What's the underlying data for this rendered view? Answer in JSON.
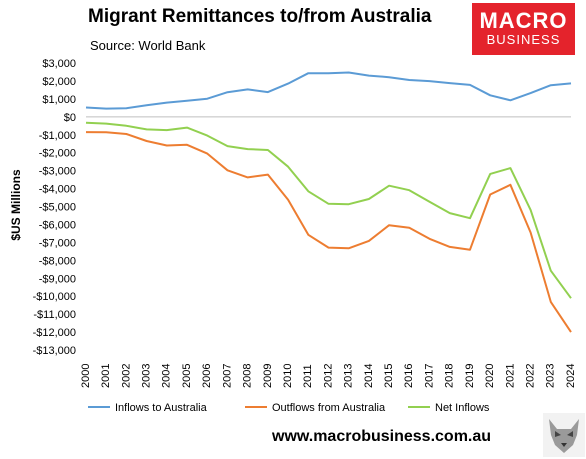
{
  "header": {
    "title": "Migrant Remittances to/from Australia",
    "source": "Source: World Bank"
  },
  "logo": {
    "line1": "MACRO",
    "line2": "BUSINESS",
    "color": "#e4232c"
  },
  "footer": {
    "url": "www.macrobusiness.com.au"
  },
  "chart_data": {
    "type": "line",
    "title": "Migrant Remittances to/from Australia",
    "ylabel": "$US Millions",
    "xlabel": "",
    "ylim": [
      -13000,
      3000
    ],
    "yticks": [
      3000,
      2000,
      1000,
      0,
      -1000,
      -2000,
      -3000,
      -4000,
      -5000,
      -6000,
      -7000,
      -8000,
      -9000,
      -10000,
      -11000,
      -12000,
      -13000
    ],
    "ytick_labels": [
      "$3,000",
      "$2,000",
      "$1,000",
      "$0",
      "-$1,000",
      "-$2,000",
      "-$3,000",
      "-$4,000",
      "-$5,000",
      "-$6,000",
      "-$7,000",
      "-$8,000",
      "-$9,000",
      "-$10,000",
      "-$11,000",
      "-$12,000",
      "-$13,000"
    ],
    "categories": [
      "2000",
      "2001",
      "2002",
      "2003",
      "2004",
      "2005",
      "2006",
      "2007",
      "2008",
      "2009",
      "2010",
      "2011",
      "2012",
      "2013",
      "2014",
      "2015",
      "2016",
      "2017",
      "2018",
      "2019",
      "2020",
      "2021",
      "2022",
      "2023",
      "2024"
    ],
    "grid": false,
    "legend": "bottom",
    "series": [
      {
        "name": "Inflows to Australia",
        "color": "#5b9bd5",
        "values": [
          520,
          460,
          480,
          640,
          790,
          900,
          1010,
          1370,
          1530,
          1380,
          1850,
          2430,
          2430,
          2470,
          2300,
          2210,
          2050,
          1990,
          1880,
          1780,
          1200,
          920,
          1320,
          1760,
          1860
        ]
      },
      {
        "name": "Outflows from Australia",
        "color": "#ed7d31",
        "values": [
          -850,
          -860,
          -960,
          -1350,
          -1600,
          -1560,
          -2050,
          -2980,
          -3380,
          -3220,
          -4620,
          -6580,
          -7290,
          -7330,
          -6920,
          -6040,
          -6190,
          -6800,
          -7250,
          -7410,
          -4330,
          -3790,
          -6450,
          -10320,
          -12000
        ]
      },
      {
        "name": "Net Inflows",
        "color": "#92d050",
        "values": [
          -330,
          -380,
          -500,
          -700,
          -740,
          -600,
          -1050,
          -1630,
          -1800,
          -1850,
          -2780,
          -4150,
          -4850,
          -4870,
          -4580,
          -3840,
          -4090,
          -4730,
          -5370,
          -5650,
          -3180,
          -2860,
          -5190,
          -8580,
          -10110
        ]
      }
    ]
  }
}
